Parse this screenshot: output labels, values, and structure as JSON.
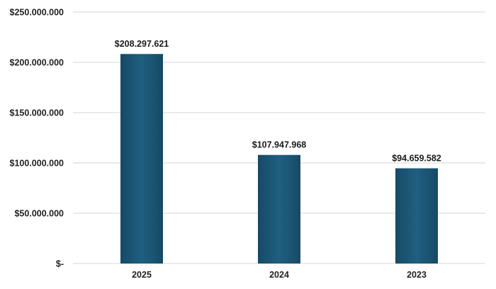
{
  "chart_data": {
    "type": "bar",
    "categories": [
      "2025",
      "2024",
      "2023"
    ],
    "values": [
      208297621,
      107947968,
      94659582
    ],
    "data_labels": [
      "$208.297.621",
      "$107.947.968",
      "$94.659.582"
    ],
    "ylim": [
      0,
      250000000
    ],
    "yticks": [
      0,
      50000000,
      100000000,
      150000000,
      200000000,
      250000000
    ],
    "ytick_labels": [
      "$-",
      "$50.000.000",
      "$100.000.000",
      "$150.000.000",
      "$200.000.000",
      "$250.000.000"
    ],
    "grid": true,
    "legend": "none",
    "bar_color": "#1f5f80",
    "bar_color_dark": "#164a66",
    "grid_color": "#d4d4d4"
  }
}
